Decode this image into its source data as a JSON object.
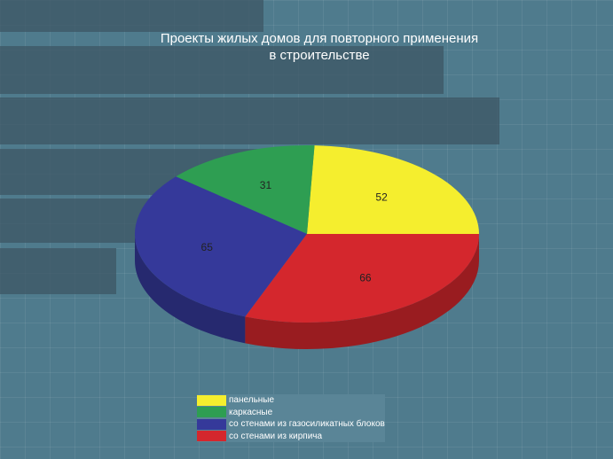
{
  "chart_data": {
    "type": "pie",
    "title": "Проекты жилых домов для повторного применения в строительстве",
    "title_lines": [
      "Проекты жилых домов для повторного применения",
      "в строительстве"
    ],
    "legend_position": "bottom",
    "slices": [
      {
        "label": "панельные",
        "value": 52,
        "color": "#f5ee2e"
      },
      {
        "label": "каркасные",
        "value": 31,
        "color": "#2e9e52"
      },
      {
        "label": "со стенами из газосиликатных блоков",
        "value": 65,
        "color": "#35399a"
      },
      {
        "label": "со стенами из кирпича",
        "value": 66,
        "color": "#d4272d"
      }
    ]
  }
}
